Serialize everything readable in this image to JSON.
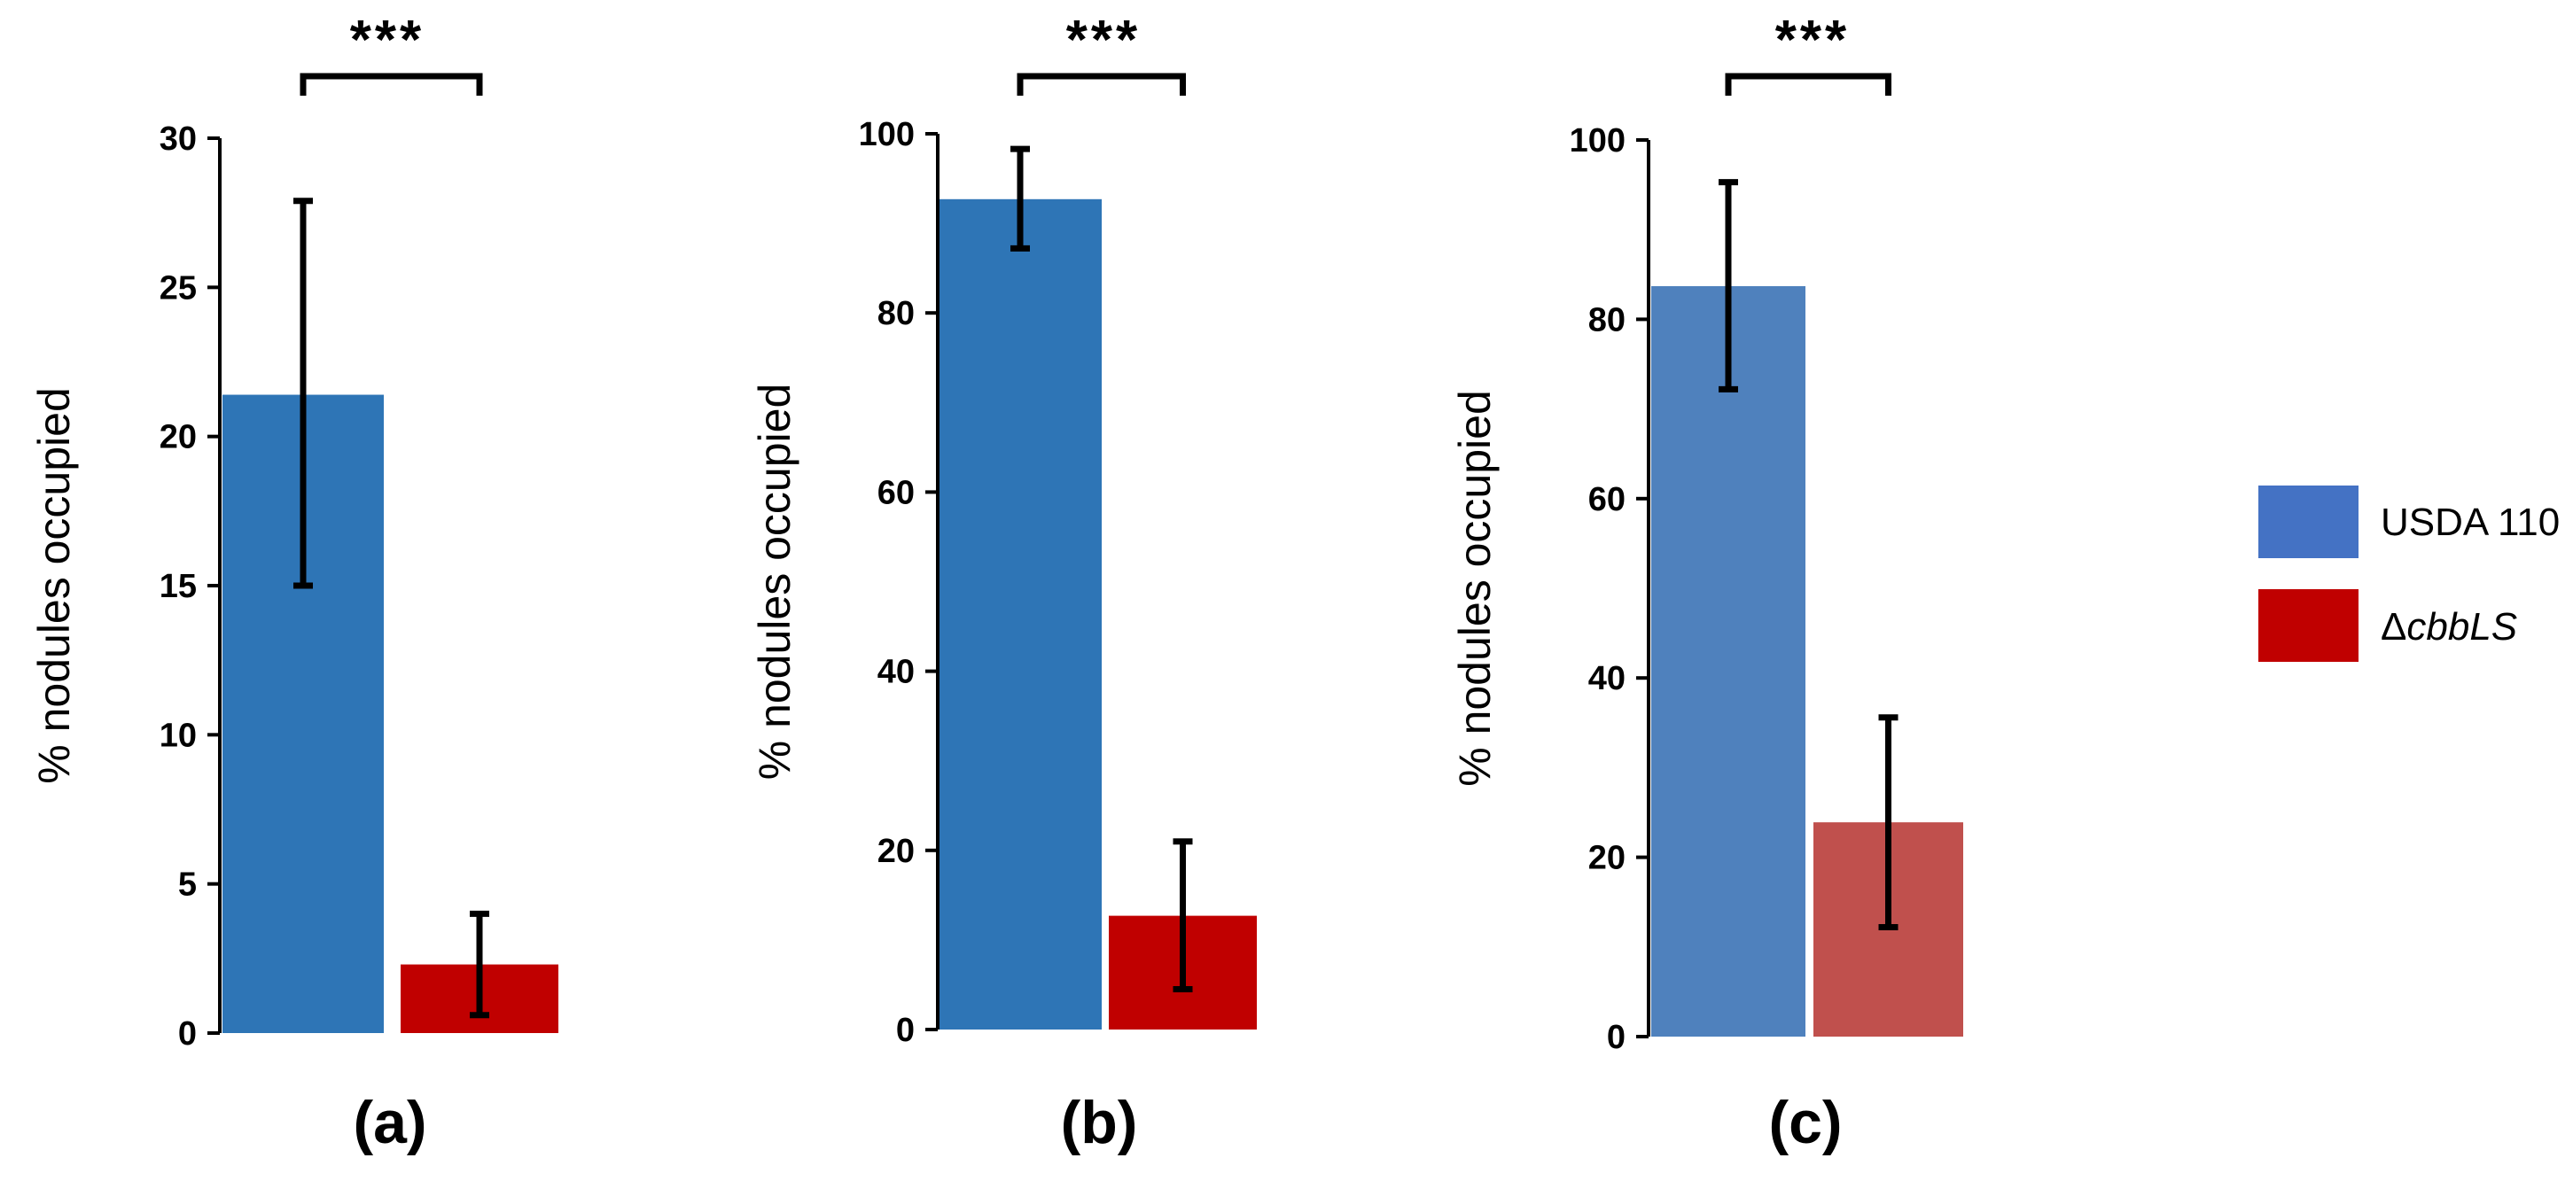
{
  "chart_data": [
    {
      "type": "bar",
      "panel_label": "(a)",
      "ylabel": "% nodules occupied",
      "ylim": [
        0,
        30
      ],
      "yticks": [
        "0",
        "5",
        "10",
        "15",
        "20",
        "25",
        "30"
      ],
      "significance": "***",
      "series": [
        {
          "name": "USDA 110",
          "value": 21.4,
          "err_low": 15.0,
          "err_high": 27.9,
          "color": "#2E75B6"
        },
        {
          "name": "ΔcbbLS",
          "value": 2.3,
          "err_low": 0.6,
          "err_high": 4.0,
          "color": "#C00000"
        }
      ]
    },
    {
      "type": "bar",
      "panel_label": "(b)",
      "ylabel": "% nodules occupied",
      "ylim": [
        0,
        100
      ],
      "yticks": [
        "0",
        "20",
        "40",
        "60",
        "80",
        "100"
      ],
      "significance": "***",
      "series": [
        {
          "name": "USDA 110",
          "value": 92.7,
          "err_low": 87.2,
          "err_high": 98.3,
          "color": "#2E75B6"
        },
        {
          "name": "ΔcbbLS",
          "value": 12.7,
          "err_low": 4.5,
          "err_high": 21.0,
          "color": "#C00000"
        }
      ]
    },
    {
      "type": "bar",
      "panel_label": "(c)",
      "ylabel": "% nodules occupied",
      "ylim": [
        0,
        100
      ],
      "yticks": [
        "0",
        "20",
        "40",
        "60",
        "80",
        "100"
      ],
      "significance": "***",
      "series": [
        {
          "name": "USDA 110",
          "value": 83.7,
          "err_low": 72.2,
          "err_high": 95.3,
          "color": "#4F81BD"
        },
        {
          "name": "ΔcbbLS",
          "value": 23.9,
          "err_low": 12.2,
          "err_high": 35.6,
          "color": "#C0504D"
        }
      ]
    }
  ],
  "legend": {
    "items": [
      {
        "label": "USDA 110",
        "color": "#4472C4"
      },
      {
        "label_prefix": "Δ",
        "label_italic": "cbbLS",
        "color": "#C00000"
      }
    ]
  }
}
